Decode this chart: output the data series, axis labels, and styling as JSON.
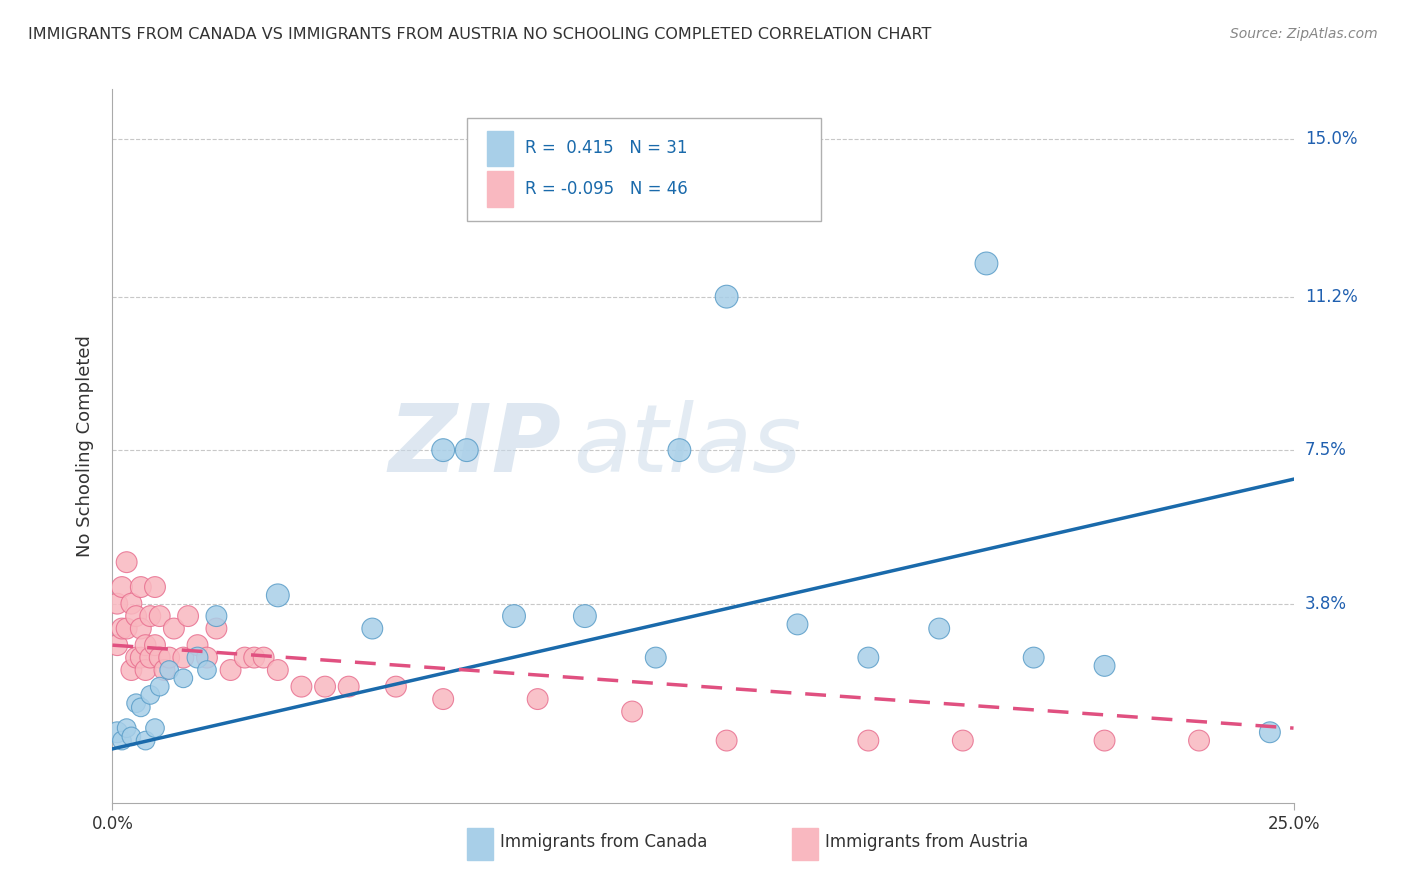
{
  "title": "IMMIGRANTS FROM CANADA VS IMMIGRANTS FROM AUSTRIA NO SCHOOLING COMPLETED CORRELATION CHART",
  "source": "Source: ZipAtlas.com",
  "ylabel": "No Schooling Completed",
  "ytick_labels": [
    "",
    "3.8%",
    "7.5%",
    "11.2%",
    "15.0%"
  ],
  "ytick_values": [
    0,
    0.038,
    0.075,
    0.112,
    0.15
  ],
  "xlim": [
    0.0,
    0.25
  ],
  "ylim": [
    -0.01,
    0.162
  ],
  "canada_R": 0.415,
  "canada_N": 31,
  "austria_R": -0.095,
  "austria_N": 46,
  "legend_label_canada": "Immigrants from Canada",
  "legend_label_austria": "Immigrants from Austria",
  "canada_color": "#a8cfe8",
  "austria_color": "#f9b8c0",
  "canada_edge_color": "#5a9dc8",
  "austria_edge_color": "#e87090",
  "canada_line_color": "#1a6aab",
  "austria_line_color": "#e05080",
  "watermark_zip": "ZIP",
  "watermark_atlas": "atlas",
  "canada_x": [
    0.001,
    0.002,
    0.003,
    0.004,
    0.005,
    0.006,
    0.007,
    0.008,
    0.009,
    0.01,
    0.012,
    0.015,
    0.018,
    0.02,
    0.022,
    0.035,
    0.055,
    0.07,
    0.075,
    0.085,
    0.1,
    0.115,
    0.12,
    0.13,
    0.145,
    0.16,
    0.175,
    0.185,
    0.195,
    0.21,
    0.245
  ],
  "canada_y": [
    0.007,
    0.005,
    0.008,
    0.006,
    0.014,
    0.013,
    0.005,
    0.016,
    0.008,
    0.018,
    0.022,
    0.02,
    0.025,
    0.022,
    0.035,
    0.04,
    0.032,
    0.075,
    0.075,
    0.035,
    0.035,
    0.025,
    0.075,
    0.112,
    0.033,
    0.025,
    0.032,
    0.12,
    0.025,
    0.023,
    0.007
  ],
  "canada_size": [
    25,
    20,
    20,
    20,
    20,
    20,
    20,
    20,
    20,
    20,
    20,
    20,
    25,
    20,
    25,
    30,
    25,
    30,
    30,
    30,
    30,
    25,
    30,
    30,
    25,
    25,
    25,
    30,
    25,
    25,
    25
  ],
  "austria_x": [
    0.001,
    0.001,
    0.002,
    0.002,
    0.003,
    0.003,
    0.004,
    0.004,
    0.005,
    0.005,
    0.006,
    0.006,
    0.006,
    0.007,
    0.007,
    0.008,
    0.008,
    0.009,
    0.009,
    0.01,
    0.01,
    0.011,
    0.012,
    0.013,
    0.015,
    0.016,
    0.018,
    0.02,
    0.022,
    0.025,
    0.028,
    0.03,
    0.032,
    0.035,
    0.04,
    0.045,
    0.05,
    0.06,
    0.07,
    0.09,
    0.11,
    0.13,
    0.16,
    0.18,
    0.21,
    0.23
  ],
  "austria_y": [
    0.028,
    0.038,
    0.032,
    0.042,
    0.048,
    0.032,
    0.038,
    0.022,
    0.035,
    0.025,
    0.042,
    0.032,
    0.025,
    0.028,
    0.022,
    0.035,
    0.025,
    0.042,
    0.028,
    0.035,
    0.025,
    0.022,
    0.025,
    0.032,
    0.025,
    0.035,
    0.028,
    0.025,
    0.032,
    0.022,
    0.025,
    0.025,
    0.025,
    0.022,
    0.018,
    0.018,
    0.018,
    0.018,
    0.015,
    0.015,
    0.012,
    0.005,
    0.005,
    0.005,
    0.005,
    0.005
  ],
  "austria_size": [
    25,
    25,
    25,
    25,
    25,
    25,
    25,
    25,
    25,
    25,
    25,
    25,
    25,
    25,
    25,
    25,
    25,
    25,
    25,
    25,
    25,
    25,
    25,
    25,
    25,
    25,
    25,
    25,
    25,
    25,
    25,
    25,
    25,
    25,
    25,
    25,
    25,
    25,
    25,
    25,
    25,
    25,
    25,
    25,
    25,
    25
  ],
  "canada_line_start_y": 0.003,
  "canada_line_end_y": 0.068,
  "austria_line_start_y": 0.028,
  "austria_line_end_y": 0.008
}
